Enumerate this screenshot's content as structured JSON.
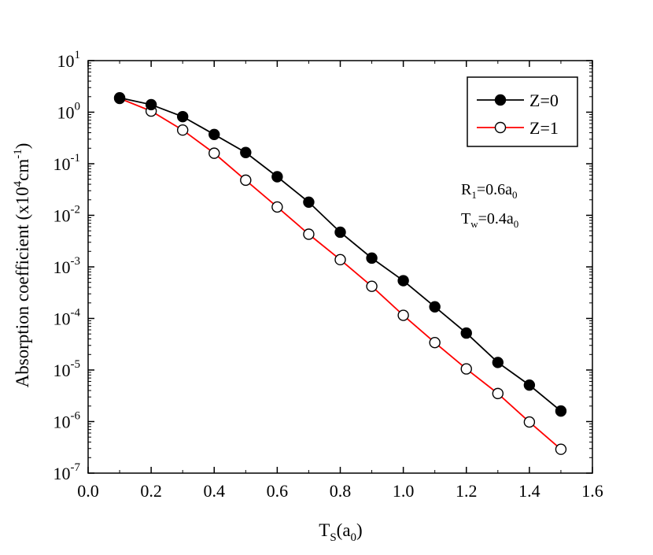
{
  "chart_data": {
    "type": "line",
    "yscale": "log",
    "title": "",
    "xlabel": {
      "main": "T",
      "sub1": "S",
      "mid": "(a",
      "sub2": "0",
      "end": ")"
    },
    "ylabel": {
      "main": "Absorption coefficient (x10",
      "sup1": "4",
      "mid": "cm",
      "sup2": "-1",
      "end": ")"
    },
    "xlim": [
      0.0,
      1.6
    ],
    "ylim": [
      1e-07,
      10
    ],
    "x_ticks": [
      "0.0",
      "0.2",
      "0.4",
      "0.6",
      "0.8",
      "1.0",
      "1.2",
      "1.4",
      "1.6"
    ],
    "y_ticks": [
      {
        "base": "10",
        "exp": "1"
      },
      {
        "base": "10",
        "exp": "0"
      },
      {
        "base": "10",
        "exp": "-1"
      },
      {
        "base": "10",
        "exp": "-2"
      },
      {
        "base": "10",
        "exp": "-3"
      },
      {
        "base": "10",
        "exp": "-4"
      },
      {
        "base": "10",
        "exp": "-5"
      },
      {
        "base": "10",
        "exp": "-6"
      },
      {
        "base": "10",
        "exp": "-7"
      }
    ],
    "x": [
      0.1,
      0.2,
      0.3,
      0.4,
      0.5,
      0.6,
      0.7,
      0.8,
      0.9,
      1.0,
      1.1,
      1.2,
      1.3,
      1.4,
      1.5
    ],
    "series": [
      {
        "name": "Z=0",
        "line_color": "#000000",
        "marker": "filled-circle",
        "values": [
          1.9,
          1.4,
          0.82,
          0.37,
          0.165,
          0.056,
          0.018,
          0.0047,
          0.00148,
          0.00054,
          0.000168,
          5.2e-05,
          1.4e-05,
          5.1e-06,
          1.6e-06
        ]
      },
      {
        "name": "Z=1",
        "line_color": "#ff0000",
        "marker": "open-circle",
        "values": [
          1.85,
          1.05,
          0.45,
          0.16,
          0.048,
          0.0145,
          0.0043,
          0.00138,
          0.00042,
          0.000115,
          3.4e-05,
          1.05e-05,
          3.5e-06,
          9.8e-07,
          2.9e-07
        ]
      }
    ],
    "legend": {
      "position": "top-right",
      "entries": [
        "Z=0",
        "Z=1"
      ]
    },
    "annotations": [
      {
        "main": "R",
        "sub": "1",
        "rest": "=0.6a",
        "sub2": "0"
      },
      {
        "main": "T",
        "sub": "w",
        "rest": "=0.4a",
        "sub2": "0"
      }
    ],
    "grid": false
  }
}
